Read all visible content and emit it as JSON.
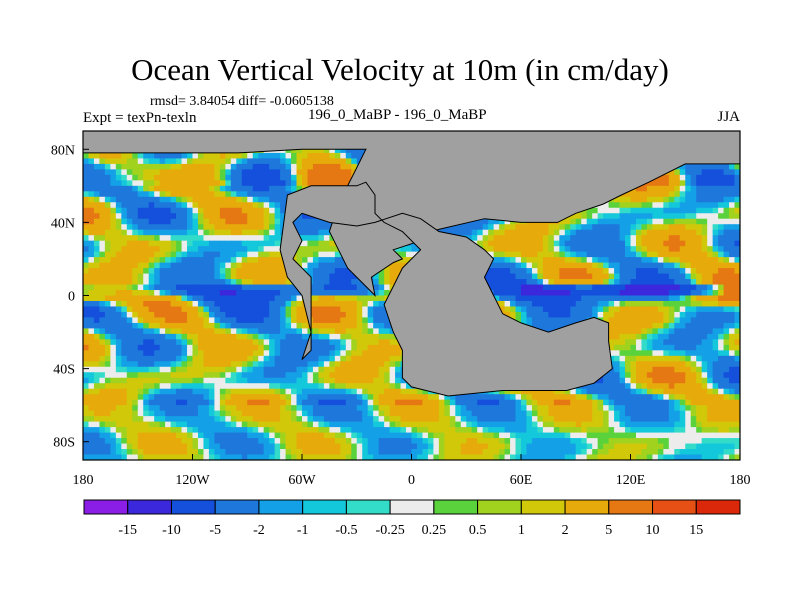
{
  "chart_data": {
    "type": "heatmap",
    "title": "Ocean Vertical Velocity at 10m (in cm/day)",
    "stats_text": "rmsd= 3.84054 diff= -0.0605138",
    "left_label": "Expt = texPn-texln",
    "center_label": "196_0_MaBP - 196_0_MaBP",
    "right_label": "JJA",
    "x_ticks": [
      "180",
      "120W",
      "60W",
      "0",
      "60E",
      "120E",
      "180"
    ],
    "x_tick_values": [
      -180,
      -120,
      -60,
      0,
      60,
      120,
      180
    ],
    "y_ticks": [
      "80N",
      "40N",
      "0",
      "40S",
      "80S"
    ],
    "y_tick_values": [
      80,
      40,
      0,
      -40,
      -80
    ],
    "xlim": [
      -180,
      180
    ],
    "ylim": [
      -90,
      90
    ],
    "colorbar": {
      "labels": [
        "-15",
        "-10",
        "-5",
        "-2",
        "-1",
        "-0.5",
        "-0.25",
        "0.25",
        "0.5",
        "1",
        "2",
        "5",
        "10",
        "15"
      ],
      "colors": [
        "#8a1ee6",
        "#3c28dc",
        "#1450dc",
        "#1e78dc",
        "#14a0e6",
        "#14c8dc",
        "#32dcc8",
        "#ececec",
        "#5ad23c",
        "#a0d21e",
        "#d2c80a",
        "#e6aa0a",
        "#e67814",
        "#e65014",
        "#dc280a"
      ]
    },
    "land_color": "#a0a0a0",
    "land_polygons": [
      [
        [
          -180,
          90
        ],
        [
          180,
          90
        ],
        [
          180,
          72
        ],
        [
          150,
          72
        ],
        [
          130,
          62
        ],
        [
          115,
          55
        ],
        [
          105,
          50
        ],
        [
          90,
          45
        ],
        [
          80,
          40
        ],
        [
          60,
          40
        ],
        [
          40,
          42
        ],
        [
          10,
          35
        ],
        [
          5,
          30
        ],
        [
          -10,
          25
        ],
        [
          -5,
          20
        ],
        [
          -10,
          18
        ],
        [
          -22,
          10
        ],
        [
          -20,
          0
        ],
        [
          -25,
          5
        ],
        [
          -35,
          15
        ],
        [
          -40,
          25
        ],
        [
          -45,
          35
        ],
        [
          -40,
          50
        ],
        [
          -35,
          60
        ],
        [
          -30,
          70
        ],
        [
          -25,
          80
        ],
        [
          -60,
          80
        ],
        [
          -95,
          78
        ],
        [
          -150,
          78
        ],
        [
          -180,
          78
        ]
      ],
      [
        [
          -55,
          60
        ],
        [
          -30,
          60
        ],
        [
          -25,
          62
        ],
        [
          -20,
          55
        ],
        [
          -20,
          45
        ],
        [
          -15,
          40
        ],
        [
          -5,
          35
        ],
        [
          5,
          25
        ],
        [
          -5,
          15
        ],
        [
          -10,
          5
        ],
        [
          -15,
          -5
        ],
        [
          -10,
          -20
        ],
        [
          -5,
          -30
        ],
        [
          -5,
          -45
        ],
        [
          0,
          -50
        ],
        [
          20,
          -55
        ],
        [
          50,
          -52
        ],
        [
          85,
          -52
        ],
        [
          100,
          -48
        ],
        [
          110,
          -40
        ],
        [
          108,
          -25
        ],
        [
          108,
          -15
        ],
        [
          100,
          -12
        ],
        [
          90,
          -15
        ],
        [
          75,
          -20
        ],
        [
          60,
          -15
        ],
        [
          50,
          -10
        ],
        [
          45,
          0
        ],
        [
          40,
          10
        ],
        [
          45,
          20
        ],
        [
          40,
          25
        ],
        [
          30,
          32
        ],
        [
          15,
          35
        ],
        [
          5,
          42
        ],
        [
          -5,
          45
        ],
        [
          -20,
          40
        ],
        [
          -30,
          38
        ],
        [
          -45,
          40
        ],
        [
          -60,
          45
        ],
        [
          -65,
          40
        ],
        [
          -60,
          30
        ],
        [
          -65,
          20
        ],
        [
          -55,
          10
        ],
        [
          -55,
          0
        ],
        [
          -55,
          -30
        ],
        [
          -60,
          -35
        ],
        [
          -55,
          -20
        ],
        [
          -60,
          0
        ],
        [
          -68,
          10
        ],
        [
          -72,
          25
        ],
        [
          -70,
          40
        ],
        [
          -68,
          55
        ]
      ]
    ],
    "annotation_note": "Filled contour field of vertical velocity anomaly; land masked in gray."
  }
}
